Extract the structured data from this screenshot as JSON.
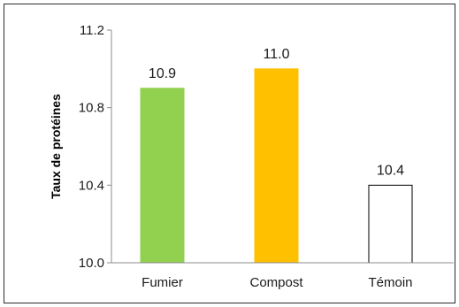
{
  "chart_data": {
    "type": "bar",
    "categories": [
      "Fumier",
      "Compost",
      "Témoin"
    ],
    "values": [
      10.9,
      11.0,
      10.4
    ],
    "data_labels": [
      "10.9",
      "11.0",
      "10.4"
    ],
    "ylabel": "Taux de protéines",
    "xlabel": "",
    "ylim": [
      10.0,
      11.2
    ],
    "yticks": [
      10.0,
      10.4,
      10.8,
      11.2
    ],
    "ytick_labels": [
      "10.0",
      "10.4",
      "10.8",
      "11.2"
    ],
    "grid": false,
    "legend": "none",
    "bar_fills": [
      "#92d050",
      "#ffc000",
      "#ffffff"
    ],
    "bar_strokes": [
      "#92d050",
      "#ffc000",
      "#000000"
    ]
  }
}
